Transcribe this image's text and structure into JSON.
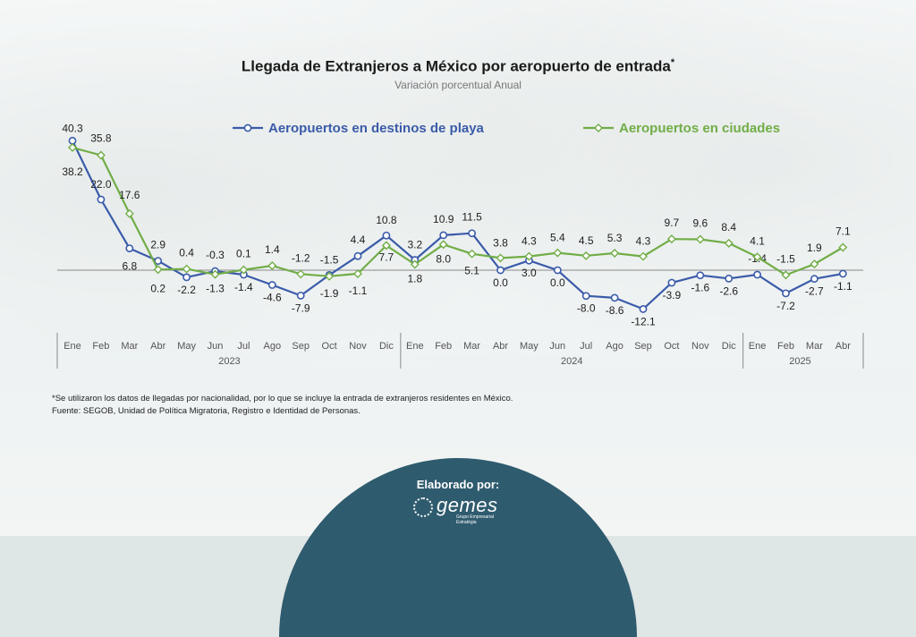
{
  "page": {
    "title": "Llegada de Extranjeros a México por aeropuerto de entrada",
    "title_mark": "*",
    "subtitle": "Variación porcentual Anual",
    "note": "*Se utilizaron los datos de llegadas por nacionalidad, por lo que se incluye la entrada de extranjeros residentes en México.",
    "source": "Fuente: SEGOB, Unidad de Política Migratoria, Registro e Identidad de Personas.",
    "footer": {
      "label": "Elaborado por:",
      "logo_text": "gemes",
      "logo_tagline": "Grupo Empresarial Estratégia"
    }
  },
  "chart_data": {
    "type": "line",
    "categories": [
      "Ene",
      "Feb",
      "Mar",
      "Abr",
      "May",
      "Jun",
      "Jul",
      "Ago",
      "Sep",
      "Oct",
      "Nov",
      "Dic",
      "Ene",
      "Feb",
      "Mar",
      "Abr",
      "May",
      "Jun",
      "Jul",
      "Ago",
      "Sep",
      "Oct",
      "Nov",
      "Dic",
      "Ene",
      "Feb",
      "Mar",
      "Abr"
    ],
    "years": [
      {
        "label": "2023",
        "start": 0,
        "end": 11
      },
      {
        "label": "2024",
        "start": 12,
        "end": 23
      },
      {
        "label": "2025",
        "start": 24,
        "end": 27
      }
    ],
    "series": [
      {
        "name": "Aeropuertos en destinos de playa",
        "color": "#3a5ba9",
        "marker": "circle",
        "values": [
          40.3,
          22.0,
          6.8,
          2.9,
          -2.2,
          -0.3,
          -1.4,
          -4.6,
          -7.9,
          -1.5,
          4.4,
          10.8,
          3.2,
          10.9,
          11.5,
          0.0,
          3.0,
          0.0,
          -8.0,
          -8.6,
          -12.1,
          -3.9,
          -1.6,
          -2.6,
          -1.4,
          -7.2,
          -2.7,
          -1.1
        ],
        "labels": [
          "40.3",
          "22.0",
          "6.8",
          "2.9",
          "-2.2",
          "-0.3",
          "-1.4",
          "-4.6",
          "-7.9",
          "-1.5",
          "4.4",
          "10.8",
          "3.2",
          "10.9",
          "11.5",
          "0.0",
          "3.0",
          "0.0",
          "-8.0",
          "-8.6",
          "-12.1",
          "-3.9",
          "-1.6",
          "-2.6",
          "-1.4",
          "-7.2",
          "-2.7",
          "-1.1"
        ]
      },
      {
        "name": "Aeropuertos en ciudades",
        "color": "#71ad47",
        "marker": "diamond",
        "values": [
          38.2,
          35.8,
          17.6,
          0.2,
          0.4,
          -1.3,
          0.1,
          1.4,
          -1.2,
          -1.9,
          -1.1,
          7.7,
          1.8,
          8.0,
          5.1,
          3.8,
          4.3,
          5.4,
          4.5,
          5.3,
          4.3,
          9.7,
          9.6,
          8.4,
          4.1,
          -1.5,
          1.9,
          7.1
        ],
        "labels": [
          "38.2",
          "35.8",
          "17.6",
          "0.2",
          "0.4",
          "-1.3",
          "0.1",
          "1.4",
          "-1.2",
          "-1.9",
          "-1.1",
          "7.7",
          "1.8",
          "8.0",
          "5.1",
          "3.8",
          "4.3",
          "5.4",
          "4.5",
          "5.3",
          "4.3",
          "9.7",
          "9.6",
          "8.4",
          "4.1",
          "-1.5",
          "1.9",
          "7.1"
        ]
      }
    ],
    "ylim": [
      -14,
      42
    ],
    "legend": "top",
    "grid": false
  }
}
